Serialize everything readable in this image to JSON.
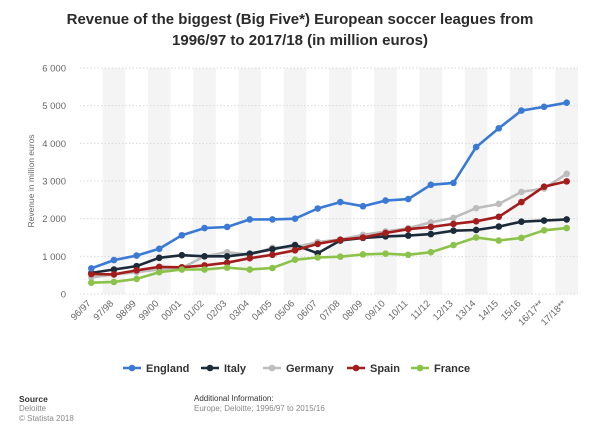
{
  "chart_data": {
    "type": "line",
    "title_line1": "Revenue of the biggest (Big Five*) European soccer leagues from",
    "title_line2": "1996/97 to 2017/18 (in million euros)",
    "ylabel": "Revenue in million euros",
    "ylim": [
      0,
      6000
    ],
    "yticks": [
      0,
      1000,
      2000,
      3000,
      4000,
      5000,
      6000
    ],
    "ytick_labels": [
      "0",
      "1 000",
      "2 000",
      "3 000",
      "4 000",
      "5 000",
      "6 000"
    ],
    "categories": [
      "96/97",
      "97/98",
      "98/99",
      "99/00",
      "00/01",
      "01/02",
      "02/03",
      "03/04",
      "04/05",
      "05/06",
      "06/07",
      "07/08",
      "08/09",
      "09/10",
      "10/11",
      "11/12",
      "12/13",
      "13/14",
      "14/15",
      "15/16",
      "16/17**",
      "17/18**"
    ],
    "series": [
      {
        "name": "Germany",
        "color": "#bdbdbd",
        "values": [
          440,
          520,
          580,
          650,
          690,
          1000,
          1110,
          1040,
          1230,
          1240,
          1380,
          1450,
          1570,
          1660,
          1750,
          1900,
          2020,
          2280,
          2390,
          2710,
          2800,
          3190
        ]
      },
      {
        "name": "Italy",
        "color": "#1c2b3a",
        "values": [
          560,
          650,
          740,
          960,
          1030,
          1000,
          1000,
          1070,
          1190,
          1300,
          1080,
          1420,
          1490,
          1530,
          1550,
          1590,
          1680,
          1700,
          1790,
          1920,
          1950,
          1980
        ]
      },
      {
        "name": "Spain",
        "color": "#a31d1d",
        "values": [
          530,
          520,
          630,
          720,
          710,
          760,
          830,
          950,
          1040,
          1160,
          1330,
          1440,
          1500,
          1620,
          1720,
          1780,
          1860,
          1930,
          2050,
          2440,
          2850,
          2990
        ]
      },
      {
        "name": "France",
        "color": "#8bc34a",
        "values": [
          300,
          320,
          400,
          580,
          650,
          650,
          700,
          650,
          690,
          910,
          970,
          990,
          1050,
          1070,
          1040,
          1110,
          1300,
          1500,
          1420,
          1490,
          1690,
          1750
        ]
      },
      {
        "name": "England",
        "color": "#3a7ad5",
        "values": [
          680,
          900,
          1020,
          1200,
          1560,
          1750,
          1780,
          1980,
          1980,
          2000,
          2270,
          2440,
          2330,
          2480,
          2520,
          2900,
          2950,
          3900,
          4400,
          4870,
          4970,
          5080
        ]
      }
    ],
    "legend_order": [
      "England",
      "Italy",
      "Germany",
      "Spain",
      "France"
    ],
    "legend_position": "bottom-center",
    "grid": true
  },
  "footer": {
    "source_heading": "Source",
    "source_line1": "Deloitte",
    "source_line2": "© Statista 2018",
    "info_heading": "Additional Information:",
    "info_line1": "Europe; Deloitte; 1996/97 to 2015/16"
  }
}
